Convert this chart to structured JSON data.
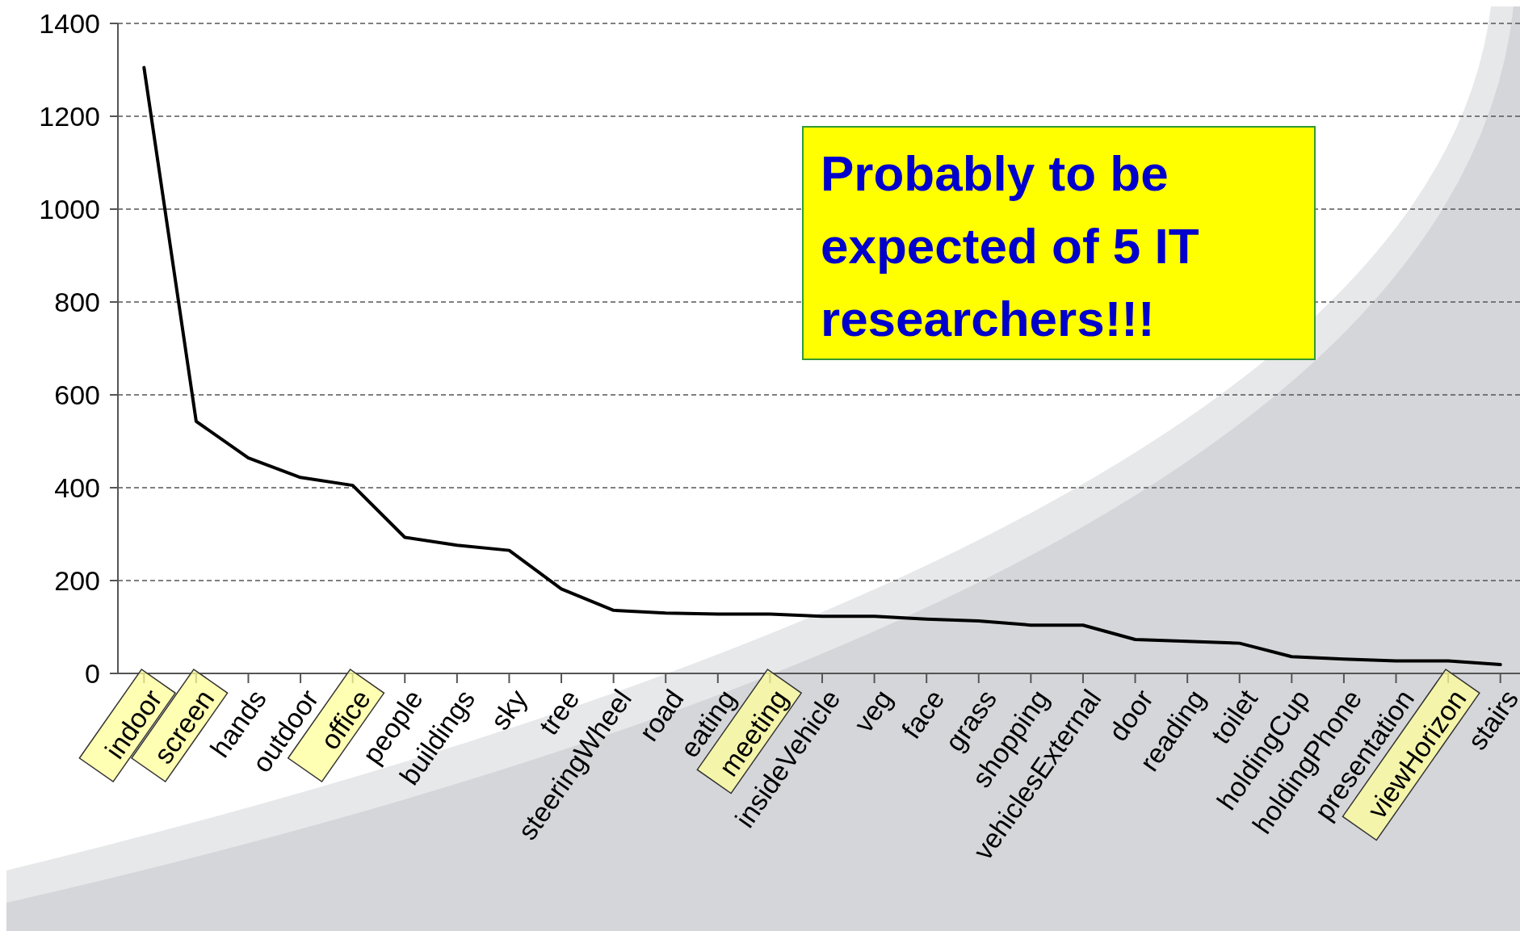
{
  "chart_data": {
    "type": "line",
    "categories": [
      "indoor",
      "screen",
      "hands",
      "outdoor",
      "office",
      "people",
      "buildings",
      "sky",
      "tree",
      "steeringWheel",
      "road",
      "eating",
      "meeting",
      "insideVehicle",
      "veg",
      "face",
      "grass",
      "shopping",
      "vehiclesExternal",
      "door",
      "reading",
      "toilet",
      "holdingCup",
      "holdingPhone",
      "presentation",
      "viewHorizon",
      "stairs"
    ],
    "series": [
      {
        "color": "#000000",
        "values": [
          1305,
          543,
          464,
          422,
          405,
          293,
          276,
          265,
          182,
          136,
          130,
          128,
          128,
          123,
          123,
          117,
          113,
          104,
          104,
          73,
          69,
          65,
          36,
          31,
          27,
          27,
          19
        ]
      }
    ],
    "ylim": [
      0,
      1400
    ],
    "yticks": [
      0,
      200,
      400,
      600,
      800,
      1000,
      1200,
      1400
    ],
    "grid": "y",
    "marker": "none",
    "line_style": "solid",
    "annotations": [
      "Probably to be expected of 5 IT researchers!!!"
    ]
  }
}
